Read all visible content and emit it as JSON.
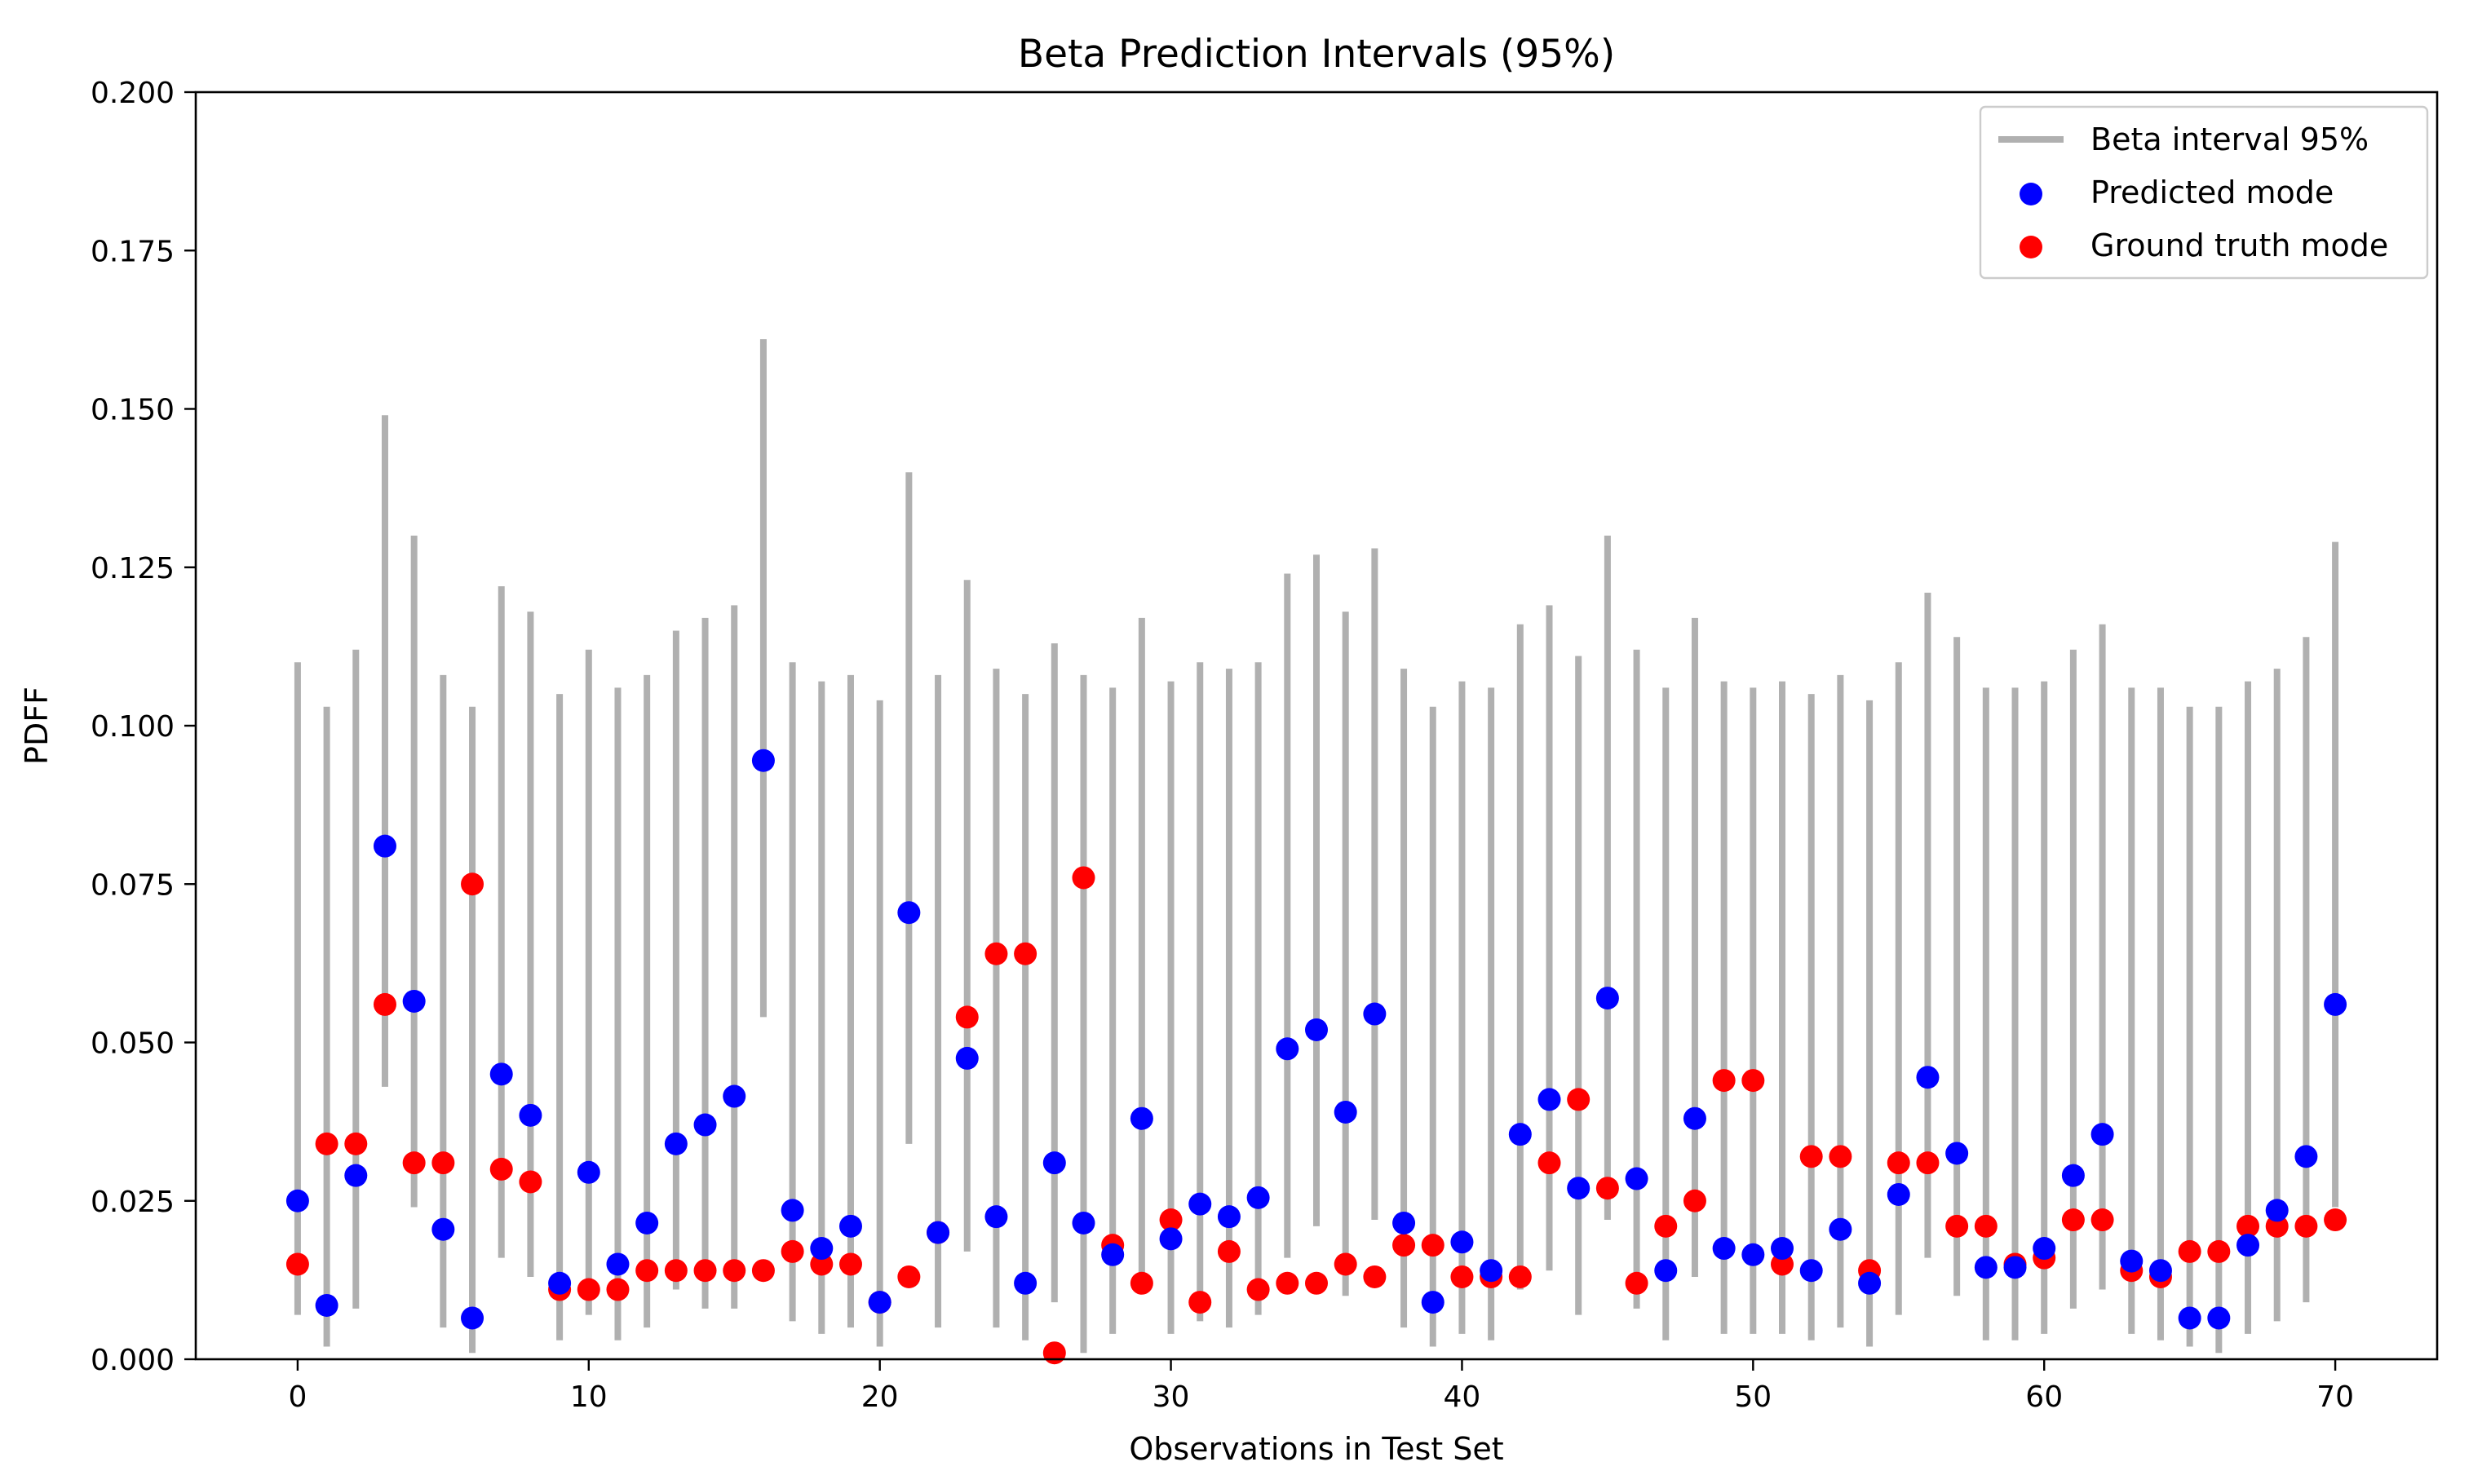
{
  "chart_data": {
    "type": "scatter",
    "title": "Beta Prediction Intervals (95%)",
    "xlabel": "Observations in Test Set",
    "ylabel": "PDFF",
    "xlim": [
      -3.5,
      73.5
    ],
    "ylim": [
      0,
      0.2
    ],
    "xticks": [
      0,
      10,
      20,
      30,
      40,
      50,
      60,
      70
    ],
    "yticks": [
      0.0,
      0.025,
      0.05,
      0.075,
      0.1,
      0.125,
      0.15,
      0.175,
      0.2
    ],
    "xtick_labels": [
      "0",
      "10",
      "20",
      "30",
      "40",
      "50",
      "60",
      "70"
    ],
    "ytick_labels": [
      "0.000",
      "0.025",
      "0.050",
      "0.075",
      "0.100",
      "0.125",
      "0.150",
      "0.175",
      "0.200"
    ],
    "grid": false,
    "legend_position": "top-right",
    "legend": [
      {
        "label": "Beta interval 95%",
        "kind": "line",
        "color": "#b0b0b0"
      },
      {
        "label": "Predicted mode",
        "kind": "dot",
        "color": "#0000ff"
      },
      {
        "label": "Ground truth mode",
        "kind": "dot",
        "color": "#ff0000"
      }
    ],
    "colors": {
      "interval": "#b0b0b0",
      "predicted": "#0000ff",
      "truth": "#ff0000"
    },
    "x": [
      0,
      1,
      2,
      3,
      4,
      5,
      6,
      7,
      8,
      9,
      10,
      11,
      12,
      13,
      14,
      15,
      16,
      17,
      18,
      19,
      20,
      21,
      22,
      23,
      24,
      25,
      26,
      27,
      28,
      29,
      30,
      31,
      32,
      33,
      34,
      35,
      36,
      37,
      38,
      39,
      40,
      41,
      42,
      43,
      44,
      45,
      46,
      47,
      48,
      49,
      50,
      51,
      52,
      53,
      54,
      55,
      56,
      57,
      58,
      59,
      60,
      61,
      62,
      63,
      64,
      65,
      66,
      67,
      68,
      69,
      70
    ],
    "series": [
      {
        "name": "Beta interval 95%",
        "kind": "interval",
        "lower": [
          0.007,
          0.002,
          0.008,
          0.043,
          0.024,
          0.005,
          0.001,
          0.016,
          0.013,
          0.003,
          0.007,
          0.003,
          0.005,
          0.011,
          0.008,
          0.008,
          0.054,
          0.006,
          0.004,
          0.005,
          0.002,
          0.034,
          0.005,
          0.017,
          0.005,
          0.003,
          0.009,
          0.001,
          0.004,
          0.012,
          0.004,
          0.006,
          0.005,
          0.007,
          0.016,
          0.021,
          0.01,
          0.022,
          0.005,
          0.002,
          0.004,
          0.003,
          0.011,
          0.014,
          0.007,
          0.022,
          0.008,
          0.003,
          0.013,
          0.004,
          0.004,
          0.004,
          0.003,
          0.005,
          0.002,
          0.007,
          0.016,
          0.01,
          0.003,
          0.003,
          0.004,
          0.008,
          0.011,
          0.004,
          0.003,
          0.002,
          0.001,
          0.004,
          0.006,
          0.009,
          0.024
        ],
        "upper": [
          0.11,
          0.103,
          0.112,
          0.149,
          0.13,
          0.108,
          0.103,
          0.122,
          0.118,
          0.105,
          0.112,
          0.106,
          0.108,
          0.115,
          0.117,
          0.119,
          0.161,
          0.11,
          0.107,
          0.108,
          0.104,
          0.14,
          0.108,
          0.123,
          0.109,
          0.105,
          0.113,
          0.108,
          0.106,
          0.117,
          0.107,
          0.11,
          0.109,
          0.11,
          0.124,
          0.127,
          0.118,
          0.128,
          0.109,
          0.103,
          0.107,
          0.106,
          0.116,
          0.119,
          0.111,
          0.13,
          0.112,
          0.106,
          0.117,
          0.107,
          0.106,
          0.107,
          0.105,
          0.108,
          0.104,
          0.11,
          0.121,
          0.114,
          0.106,
          0.106,
          0.107,
          0.112,
          0.116,
          0.106,
          0.106,
          0.103,
          0.103,
          0.107,
          0.109,
          0.114,
          0.129
        ]
      },
      {
        "name": "Predicted mode",
        "kind": "dot",
        "values": [
          0.025,
          0.0085,
          0.029,
          0.081,
          0.0565,
          0.0205,
          0.0065,
          0.045,
          0.0385,
          0.012,
          0.0295,
          0.015,
          0.0215,
          0.034,
          0.037,
          0.0415,
          0.0945,
          0.0235,
          0.0175,
          0.021,
          0.009,
          0.0705,
          0.02,
          0.0475,
          0.0225,
          0.012,
          0.031,
          0.0215,
          0.0165,
          0.038,
          0.019,
          0.0245,
          0.0225,
          0.0255,
          0.049,
          0.052,
          0.039,
          0.0545,
          0.0215,
          0.009,
          0.0185,
          0.014,
          0.0355,
          0.041,
          0.027,
          0.057,
          0.0285,
          0.014,
          0.038,
          0.0175,
          0.0165,
          0.0175,
          0.014,
          0.0205,
          0.012,
          0.026,
          0.0445,
          0.0325,
          0.0145,
          0.0145,
          0.0175,
          0.029,
          0.0355,
          0.0155,
          0.014,
          0.0065,
          0.0065,
          0.018,
          0.0235,
          0.032,
          0.056
        ]
      },
      {
        "name": "Ground truth mode",
        "kind": "dot",
        "values": [
          0.015,
          0.034,
          0.034,
          0.056,
          0.031,
          0.031,
          0.075,
          0.03,
          0.028,
          0.011,
          0.011,
          0.011,
          0.014,
          0.014,
          0.014,
          0.014,
          0.014,
          0.017,
          0.015,
          0.015,
          0.009,
          0.013,
          0.02,
          0.054,
          0.064,
          0.064,
          0.001,
          0.076,
          0.018,
          0.012,
          0.022,
          0.009,
          0.017,
          0.011,
          0.012,
          0.012,
          0.015,
          0.013,
          0.018,
          0.018,
          0.013,
          0.013,
          0.013,
          0.031,
          0.041,
          0.027,
          0.012,
          0.021,
          0.025,
          0.044,
          0.044,
          0.015,
          0.032,
          0.032,
          0.014,
          0.031,
          0.031,
          0.021,
          0.021,
          0.015,
          0.016,
          0.022,
          0.022,
          0.014,
          0.013,
          0.017,
          0.017,
          0.021,
          0.021,
          0.021,
          0.022
        ]
      }
    ]
  }
}
